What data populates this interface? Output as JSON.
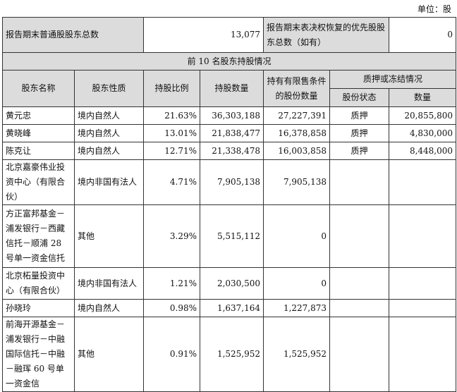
{
  "unit_label": "单位：股",
  "summary": {
    "common_label": "报告期末普通股股东总数",
    "common_value": "13,077",
    "preferred_label": "报告期末表决权恢复的优先股股东总数（如有）",
    "preferred_value": "0"
  },
  "section_title": "前 10 名股东持股情况",
  "headers": {
    "name": "股东名称",
    "nature": "股东性质",
    "ratio": "持股比例",
    "count": "持股数量",
    "restricted": "持有有限售条件的股份数量",
    "pledge": "质押或冻结情况",
    "pledge_status": "股份状态",
    "pledge_qty": "数量"
  },
  "rows": [
    {
      "name": "黄元忠",
      "nature": "境内自然人",
      "ratio": "21.63%",
      "count": "36,303,188",
      "restricted": "27,227,391",
      "status": "质押",
      "qty": "20,855,800"
    },
    {
      "name": "黄晓峰",
      "nature": "境内自然人",
      "ratio": "13.01%",
      "count": "21,838,477",
      "restricted": "16,378,858",
      "status": "质押",
      "qty": "4,830,000"
    },
    {
      "name": "陈克让",
      "nature": "境内自然人",
      "ratio": "12.71%",
      "count": "21,338,478",
      "restricted": "16,003,858",
      "status": "质押",
      "qty": "8,448,000"
    },
    {
      "name": "北京嘉豪伟业投资中心（有限合伙）",
      "nature": "境内非国有法人",
      "ratio": "4.71%",
      "count": "7,905,138",
      "restricted": "7,905,138",
      "status": "",
      "qty": ""
    },
    {
      "name": "方正富邦基金－浦发银行－西藏信托－顺浦 28 号单一资金信托",
      "nature": "其他",
      "ratio": "3.29%",
      "count": "5,515,112",
      "restricted": "0",
      "status": "",
      "qty": ""
    },
    {
      "name": "北京柘量投资中心（有限合伙）",
      "nature": "境内非国有法人",
      "ratio": "1.21%",
      "count": "2,030,500",
      "restricted": "0",
      "status": "",
      "qty": ""
    },
    {
      "name": "孙晓玲",
      "nature": "境内自然人",
      "ratio": "0.98%",
      "count": "1,637,164",
      "restricted": "1,227,873",
      "status": "",
      "qty": ""
    },
    {
      "name": "前海开源基金－浦发银行－中融国际信托－中融－融珲 60 号单一资金信",
      "nature": "其他",
      "ratio": "0.91%",
      "count": "1,525,952",
      "restricted": "1,525,952",
      "status": "",
      "qty": ""
    }
  ]
}
